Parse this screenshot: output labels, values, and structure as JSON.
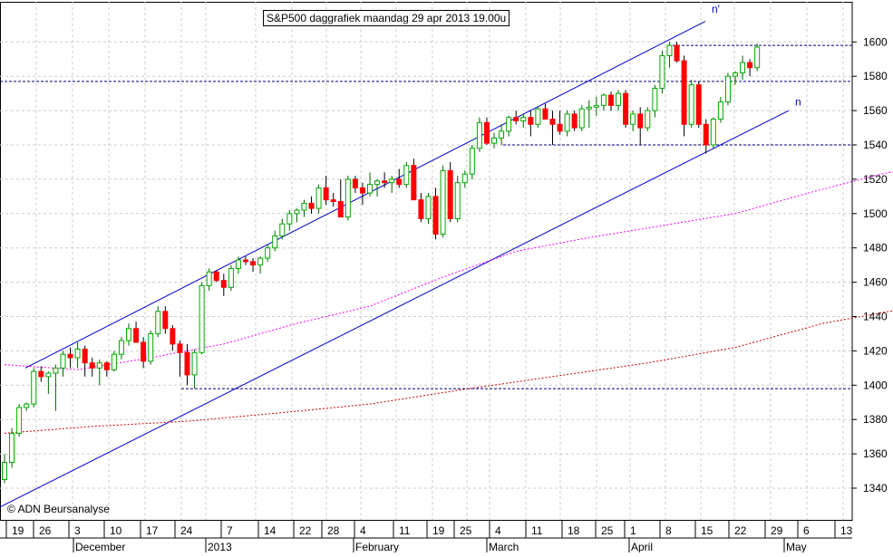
{
  "chart_data": {
    "type": "candlestick",
    "title": "S&P500 daggrafiek maandag 29 apr 2013 19.00u",
    "copyright": "© ADN Beursanalyse",
    "y_axis": {
      "side": "right",
      "ylim": [
        1320,
        1620
      ],
      "tick_labels": [
        "1340",
        "1360",
        "1380",
        "1400",
        "1420",
        "1440",
        "1460",
        "1480",
        "1500",
        "1520",
        "1540",
        "1560",
        "1580",
        "1600"
      ]
    },
    "x_day_labels": [
      "19",
      "26",
      "3",
      "10",
      "17",
      "24",
      "7",
      "14",
      "22",
      "28",
      "4",
      "11",
      "19",
      "25",
      "4",
      "11",
      "18",
      "25",
      "1",
      "8",
      "15",
      "22",
      "29",
      "6",
      "13"
    ],
    "x_month_labels": [
      "December",
      "2013",
      "February",
      "March",
      "April",
      "May"
    ],
    "horizontal_levels": [
      1598,
      1577,
      1540,
      1398
    ],
    "channel_labels": [
      "n'",
      "n"
    ],
    "colors": {
      "up": "#00aa00",
      "down": "#ff0000",
      "channel": "#0000cc",
      "ma_short": "#ff00ff",
      "ma_long": "#cc0000",
      "grid": "#cccccc",
      "level": "#000080"
    },
    "candles": [
      [
        1345,
        1360,
        1343,
        1355
      ],
      [
        1355,
        1375,
        1352,
        1372
      ],
      [
        1372,
        1389,
        1370,
        1387
      ],
      [
        1387,
        1390,
        1385,
        1389
      ],
      [
        1389,
        1410,
        1387,
        1408
      ],
      [
        1408,
        1411,
        1402,
        1405
      ],
      [
        1405,
        1408,
        1395,
        1407
      ],
      [
        1407,
        1412,
        1385,
        1410
      ],
      [
        1410,
        1420,
        1405,
        1418
      ],
      [
        1418,
        1422,
        1410,
        1416
      ],
      [
        1416,
        1425,
        1410,
        1421
      ],
      [
        1421,
        1423,
        1405,
        1413
      ],
      [
        1413,
        1416,
        1405,
        1410
      ],
      [
        1410,
        1415,
        1400,
        1413
      ],
      [
        1413,
        1414,
        1405,
        1409
      ],
      [
        1409,
        1420,
        1408,
        1418
      ],
      [
        1418,
        1428,
        1415,
        1426
      ],
      [
        1426,
        1436,
        1423,
        1433
      ],
      [
        1433,
        1437,
        1425,
        1425
      ],
      [
        1425,
        1428,
        1410,
        1414
      ],
      [
        1414,
        1432,
        1412,
        1430
      ],
      [
        1430,
        1446,
        1428,
        1443
      ],
      [
        1443,
        1446,
        1430,
        1433
      ],
      [
        1433,
        1435,
        1420,
        1424
      ],
      [
        1424,
        1426,
        1405,
        1419
      ],
      [
        1419,
        1424,
        1400,
        1406
      ],
      [
        1406,
        1421,
        1398,
        1419
      ],
      [
        1419,
        1460,
        1418,
        1458
      ],
      [
        1458,
        1468,
        1455,
        1466
      ],
      [
        1466,
        1467,
        1460,
        1461
      ],
      [
        1461,
        1465,
        1452,
        1457
      ],
      [
        1457,
        1470,
        1455,
        1468
      ],
      [
        1468,
        1475,
        1465,
        1473
      ],
      [
        1473,
        1475,
        1470,
        1472
      ],
      [
        1472,
        1474,
        1466,
        1470
      ],
      [
        1470,
        1475,
        1465,
        1474
      ],
      [
        1474,
        1482,
        1472,
        1480
      ],
      [
        1480,
        1490,
        1478,
        1487
      ],
      [
        1487,
        1497,
        1485,
        1494
      ],
      [
        1494,
        1502,
        1490,
        1500
      ],
      [
        1500,
        1503,
        1495,
        1502
      ],
      [
        1502,
        1508,
        1498,
        1506
      ],
      [
        1506,
        1510,
        1500,
        1503
      ],
      [
        1503,
        1517,
        1500,
        1515
      ],
      [
        1515,
        1522,
        1505,
        1508
      ],
      [
        1508,
        1512,
        1504,
        1507
      ],
      [
        1507,
        1520,
        1500,
        1498
      ],
      [
        1498,
        1522,
        1496,
        1520
      ],
      [
        1520,
        1522,
        1512,
        1515
      ],
      [
        1515,
        1518,
        1505,
        1512
      ],
      [
        1512,
        1524,
        1510,
        1517
      ],
      [
        1517,
        1520,
        1510,
        1519
      ],
      [
        1519,
        1524,
        1515,
        1518
      ],
      [
        1518,
        1522,
        1512,
        1520
      ],
      [
        1520,
        1526,
        1515,
        1517
      ],
      [
        1517,
        1530,
        1515,
        1528
      ],
      [
        1528,
        1532,
        1510,
        1508
      ],
      [
        1508,
        1512,
        1495,
        1497
      ],
      [
        1497,
        1512,
        1494,
        1510
      ],
      [
        1510,
        1515,
        1485,
        1488
      ],
      [
        1488,
        1528,
        1486,
        1525
      ],
      [
        1525,
        1530,
        1495,
        1497
      ],
      [
        1497,
        1522,
        1495,
        1518
      ],
      [
        1518,
        1525,
        1515,
        1523
      ],
      [
        1523,
        1540,
        1520,
        1538
      ],
      [
        1538,
        1556,
        1536,
        1553
      ],
      [
        1553,
        1556,
        1540,
        1541
      ],
      [
        1541,
        1547,
        1538,
        1544
      ],
      [
        1544,
        1552,
        1540,
        1548
      ],
      [
        1548,
        1557,
        1545,
        1556
      ],
      [
        1556,
        1560,
        1552,
        1554
      ],
      [
        1554,
        1558,
        1550,
        1556
      ],
      [
        1556,
        1560,
        1545,
        1552
      ],
      [
        1552,
        1562,
        1550,
        1561
      ],
      [
        1561,
        1564,
        1555,
        1555
      ],
      [
        1555,
        1560,
        1540,
        1552
      ],
      [
        1552,
        1560,
        1546,
        1548
      ],
      [
        1548,
        1560,
        1545,
        1558
      ],
      [
        1558,
        1560,
        1548,
        1550
      ],
      [
        1550,
        1563,
        1548,
        1561
      ],
      [
        1561,
        1566,
        1550,
        1562
      ],
      [
        1562,
        1568,
        1557,
        1563
      ],
      [
        1563,
        1570,
        1560,
        1569
      ],
      [
        1569,
        1571,
        1560,
        1563
      ],
      [
        1563,
        1572,
        1560,
        1570
      ],
      [
        1570,
        1572,
        1550,
        1552
      ],
      [
        1552,
        1560,
        1548,
        1558
      ],
      [
        1558,
        1562,
        1540,
        1550
      ],
      [
        1550,
        1562,
        1548,
        1560
      ],
      [
        1560,
        1575,
        1556,
        1573
      ],
      [
        1573,
        1595,
        1570,
        1592
      ],
      [
        1592,
        1600,
        1585,
        1598
      ],
      [
        1598,
        1600,
        1588,
        1589
      ],
      [
        1589,
        1592,
        1545,
        1552
      ],
      [
        1552,
        1578,
        1550,
        1575
      ],
      [
        1575,
        1577,
        1550,
        1552
      ],
      [
        1552,
        1555,
        1535,
        1540
      ],
      [
        1540,
        1556,
        1538,
        1555
      ],
      [
        1555,
        1568,
        1553,
        1565
      ],
      [
        1565,
        1582,
        1563,
        1580
      ],
      [
        1580,
        1583,
        1575,
        1582
      ],
      [
        1582,
        1592,
        1578,
        1588
      ],
      [
        1588,
        1590,
        1580,
        1585
      ],
      [
        1585,
        1599,
        1583,
        1597
      ]
    ],
    "ma_short": [
      [
        0,
        1412
      ],
      [
        10,
        1409
      ],
      [
        20,
        1416
      ],
      [
        30,
        1424
      ],
      [
        40,
        1436
      ],
      [
        50,
        1446
      ],
      [
        60,
        1463
      ],
      [
        70,
        1478
      ],
      [
        80,
        1486
      ],
      [
        90,
        1493
      ],
      [
        100,
        1500
      ],
      [
        110,
        1512
      ],
      [
        120,
        1523
      ],
      [
        130,
        1531
      ],
      [
        140,
        1541
      ],
      [
        150,
        1550
      ]
    ],
    "ma_long": [
      [
        0,
        1372
      ],
      [
        12,
        1376
      ],
      [
        25,
        1379
      ],
      [
        38,
        1384
      ],
      [
        50,
        1389
      ],
      [
        62,
        1397
      ],
      [
        75,
        1405
      ],
      [
        88,
        1413
      ],
      [
        100,
        1422
      ],
      [
        112,
        1436
      ],
      [
        125,
        1446
      ],
      [
        138,
        1455
      ],
      [
        150,
        1470
      ]
    ]
  }
}
